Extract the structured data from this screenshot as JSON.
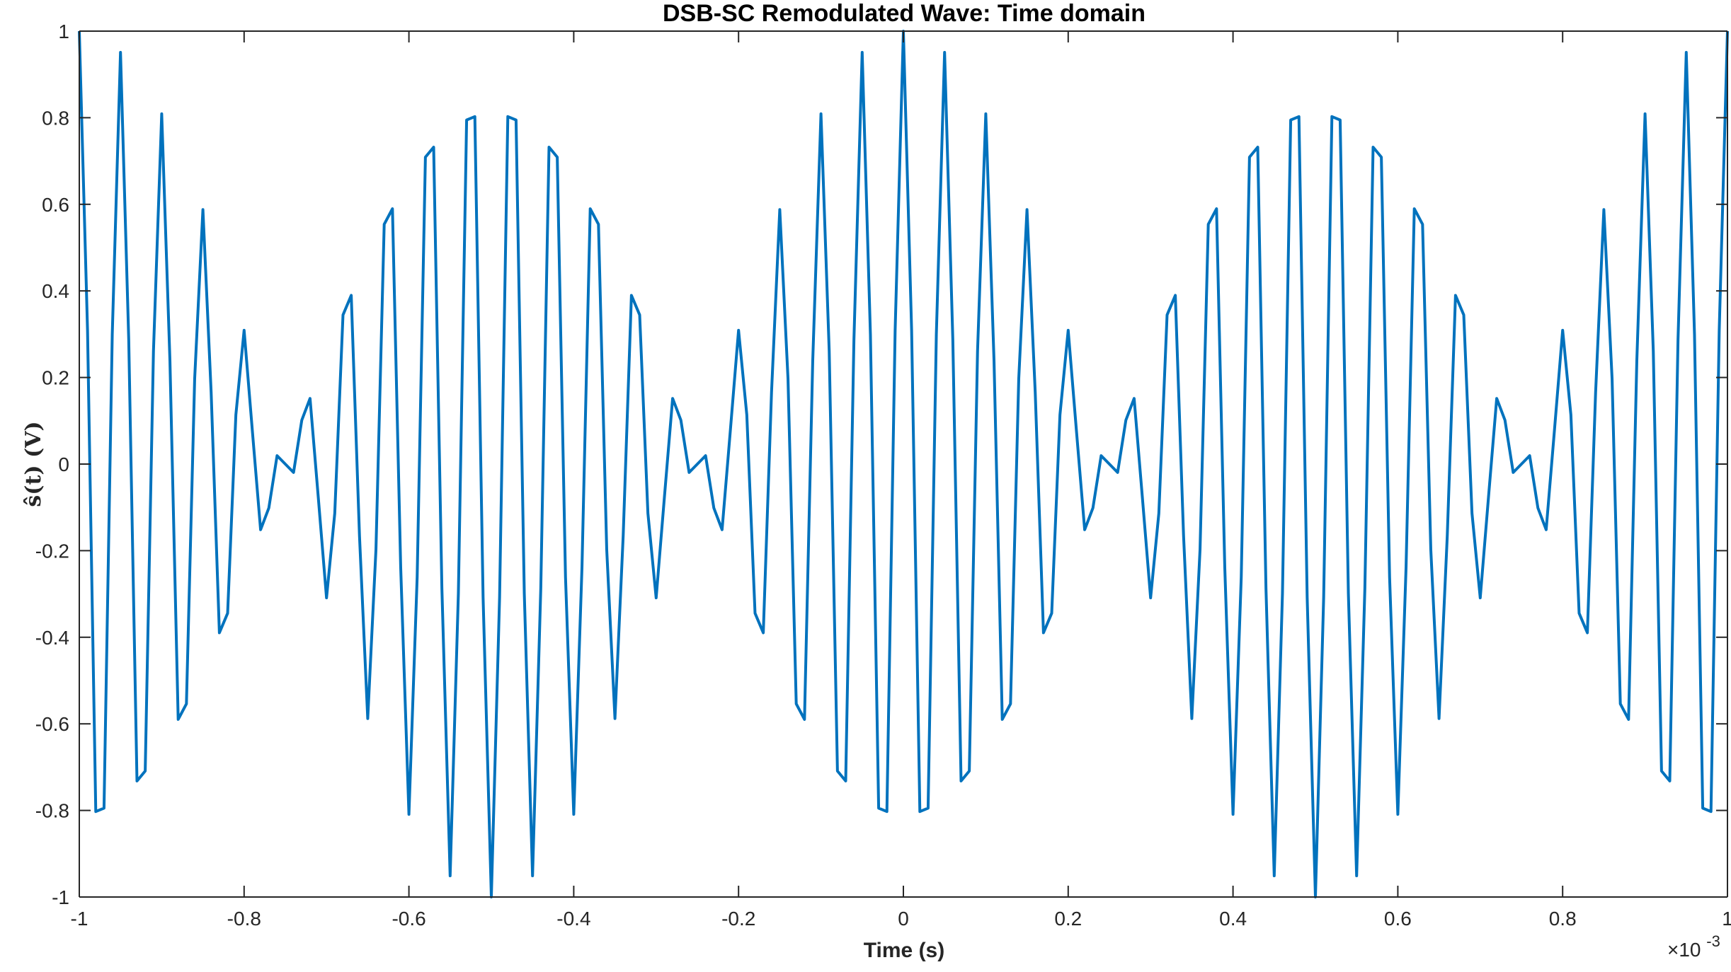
{
  "chart_data": {
    "type": "line",
    "title": "DSB-SC Remodulated Wave: Time domain",
    "xlabel": "Time (s)",
    "ylabel": "ŝ(t)  (V)",
    "x_exponent_base": "×10",
    "x_exponent_power": "-3",
    "xlim": [
      -0.001,
      0.001
    ],
    "ylim": [
      -1,
      1
    ],
    "grid": false,
    "legend": "none",
    "x_ticks": [
      -0.001,
      -0.0008,
      -0.0006,
      -0.0004,
      -0.0002,
      0,
      0.0002,
      0.0004,
      0.0006,
      0.0008,
      0.001
    ],
    "x_tick_labels": [
      "-1",
      "-0.8",
      "-0.6",
      "-0.4",
      "-0.2",
      "0",
      "0.2",
      "0.4",
      "0.6",
      "0.8",
      "1"
    ],
    "y_ticks": [
      -1,
      -0.8,
      -0.6,
      -0.4,
      -0.2,
      0,
      0.2,
      0.4,
      0.6,
      0.8,
      1
    ],
    "y_tick_labels": [
      "-1",
      "-0.8",
      "-0.6",
      "-0.4",
      "-0.2",
      "0",
      "0.2",
      "0.4",
      "0.6",
      "0.8",
      "1"
    ],
    "series": [
      {
        "color": "#0072BD",
        "formula": "cos(2*pi*1000*t) * cos(2*pi*20000*t)",
        "x_start": -0.001,
        "x_end": 0.001,
        "samples": 201
      }
    ]
  }
}
